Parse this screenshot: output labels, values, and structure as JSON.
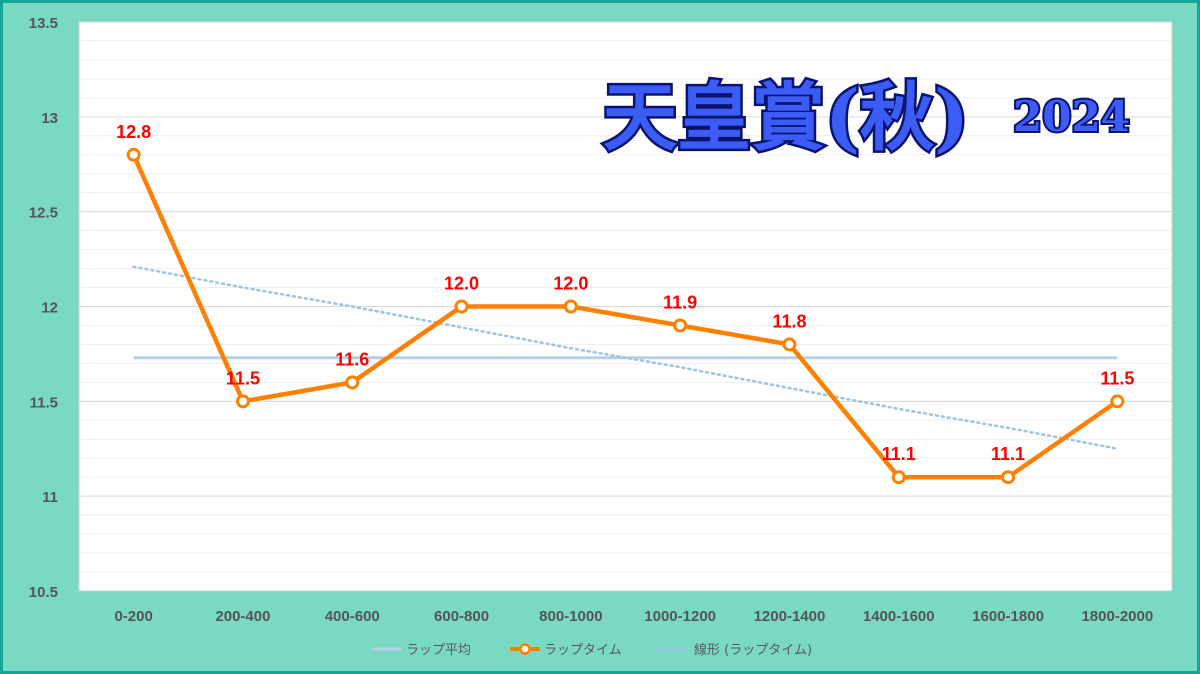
{
  "title": "天皇賞(秋)",
  "year": "2024",
  "colors": {
    "frame_background": "#79d9c2",
    "frame_border": "#15a496",
    "lap_time_line": "#ff8000",
    "lap_average_line": "#b4cfe6",
    "trend_line": "#9dc3e6",
    "data_labels": "#ff0000",
    "title_fill": "#3b5df5",
    "title_outline": "#0a1470"
  },
  "chart_data": {
    "type": "line",
    "categories": [
      "0-200",
      "200-400",
      "400-600",
      "600-800",
      "800-1000",
      "1000-1200",
      "1200-1400",
      "1400-1600",
      "1600-1800",
      "1800-2000"
    ],
    "series": [
      {
        "name": "ラップタイム",
        "values": [
          12.8,
          11.5,
          11.6,
          12.0,
          12.0,
          11.9,
          11.8,
          11.1,
          11.1,
          11.5
        ],
        "labels": [
          "12.8",
          "11.5",
          "11.6",
          "12.0",
          "12.0",
          "11.9",
          "11.8",
          "11.1",
          "11.1",
          "11.5"
        ],
        "color": "#ff8000",
        "markers": true
      },
      {
        "name": "ラップ平均",
        "values": [
          11.73,
          11.73,
          11.73,
          11.73,
          11.73,
          11.73,
          11.73,
          11.73,
          11.73,
          11.73
        ],
        "color": "#b4cfe6"
      },
      {
        "name": "線形 (ラップタイム)",
        "values": [
          12.21,
          12.1,
          12.0,
          11.89,
          11.78,
          11.68,
          11.57,
          11.46,
          11.36,
          11.25
        ],
        "color": "#9dc3e6",
        "style": "dotted"
      }
    ],
    "y_ticks": [
      "13.5",
      "13",
      "12.5",
      "12",
      "11.5",
      "11",
      "10.5"
    ],
    "ylim": [
      10.5,
      13.5
    ],
    "grid": true,
    "legend": "bottom"
  }
}
